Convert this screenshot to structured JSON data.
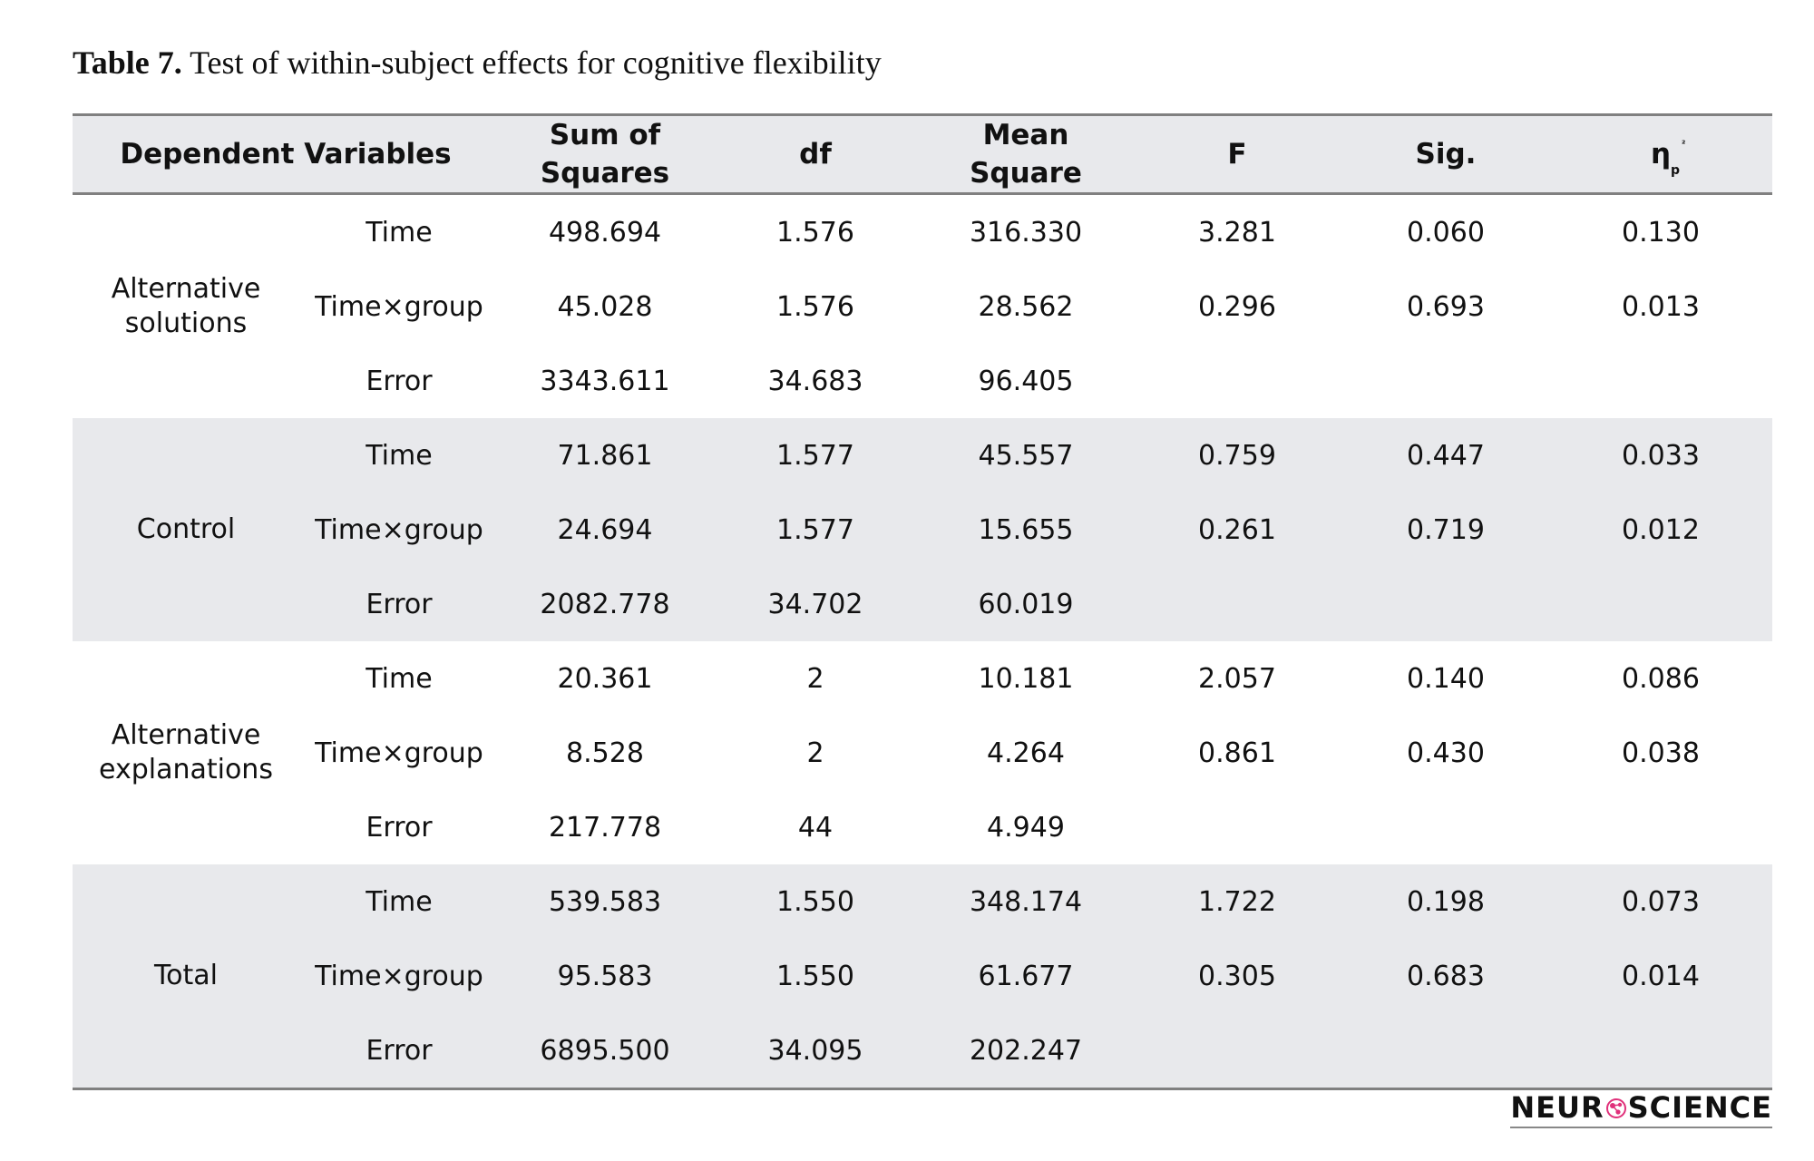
{
  "caption": {
    "label": "Table 7.",
    "text": "Test of within-subject effects for cognitive flexibility"
  },
  "table": {
    "headers": {
      "dependent_variables": "Dependent Variables",
      "sum_of_squares_line1": "Sum of",
      "sum_of_squares_line2": "Squares",
      "df": "df",
      "mean_square_line1": "Mean",
      "mean_square_line2": "Square",
      "f": "F",
      "sig": "Sig.",
      "eta_main": "η",
      "eta_sub": "p",
      "eta_sup": "²"
    },
    "groups": [
      {
        "name": "Alternative solutions",
        "rows": [
          {
            "source": "Time",
            "ss": "498.694",
            "df": "1.576",
            "ms": "316.330",
            "f": "3.281",
            "sig": "0.060",
            "eta": "0.130"
          },
          {
            "source": "Time×group",
            "ss": "45.028",
            "df": "1.576",
            "ms": "28.562",
            "f": "0.296",
            "sig": "0.693",
            "eta": "0.013"
          },
          {
            "source": "Error",
            "ss": "3343.611",
            "df": "34.683",
            "ms": "96.405",
            "f": "",
            "sig": "",
            "eta": ""
          }
        ]
      },
      {
        "name": "Control",
        "rows": [
          {
            "source": "Time",
            "ss": "71.861",
            "df": "1.577",
            "ms": "45.557",
            "f": "0.759",
            "sig": "0.447",
            "eta": "0.033"
          },
          {
            "source": "Time×group",
            "ss": "24.694",
            "df": "1.577",
            "ms": "15.655",
            "f": "0.261",
            "sig": "0.719",
            "eta": "0.012"
          },
          {
            "source": "Error",
            "ss": "2082.778",
            "df": "34.702",
            "ms": "60.019",
            "f": "",
            "sig": "",
            "eta": ""
          }
        ]
      },
      {
        "name": "Alternative explanations",
        "rows": [
          {
            "source": "Time",
            "ss": "20.361",
            "df": "2",
            "ms": "10.181",
            "f": "2.057",
            "sig": "0.140",
            "eta": "0.086"
          },
          {
            "source": "Time×group",
            "ss": "8.528",
            "df": "2",
            "ms": "4.264",
            "f": "0.861",
            "sig": "0.430",
            "eta": "0.038"
          },
          {
            "source": "Error",
            "ss": "217.778",
            "df": "44",
            "ms": "4.949",
            "f": "",
            "sig": "",
            "eta": ""
          }
        ]
      },
      {
        "name": "Total",
        "rows": [
          {
            "source": "Time",
            "ss": "539.583",
            "df": "1.550",
            "ms": "348.174",
            "f": "1.722",
            "sig": "0.198",
            "eta": "0.073"
          },
          {
            "source": "Time×group",
            "ss": "95.583",
            "df": "1.550",
            "ms": "61.677",
            "f": "0.305",
            "sig": "0.683",
            "eta": "0.014"
          },
          {
            "source": "Error",
            "ss": "6895.500",
            "df": "34.095",
            "ms": "202.247",
            "f": "",
            "sig": "",
            "eta": ""
          }
        ]
      }
    ]
  },
  "logo": {
    "left": "NEUR",
    "right": "SCIENCE",
    "accent_color": "#e0307a"
  }
}
